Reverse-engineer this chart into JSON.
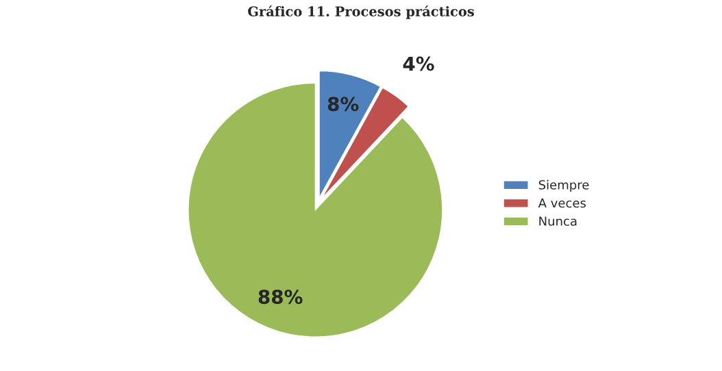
{
  "chart_data": {
    "type": "pie",
    "title": "Gráfico 11. Procesos prácticos",
    "categories": [
      "Siempre",
      "A veces",
      "Nunca"
    ],
    "values": [
      8,
      4,
      88
    ],
    "colors": [
      "#4f81bd",
      "#c0504d",
      "#9bbb59"
    ],
    "value_labels": [
      "8%",
      "4%",
      "88%"
    ],
    "legend": "right"
  }
}
